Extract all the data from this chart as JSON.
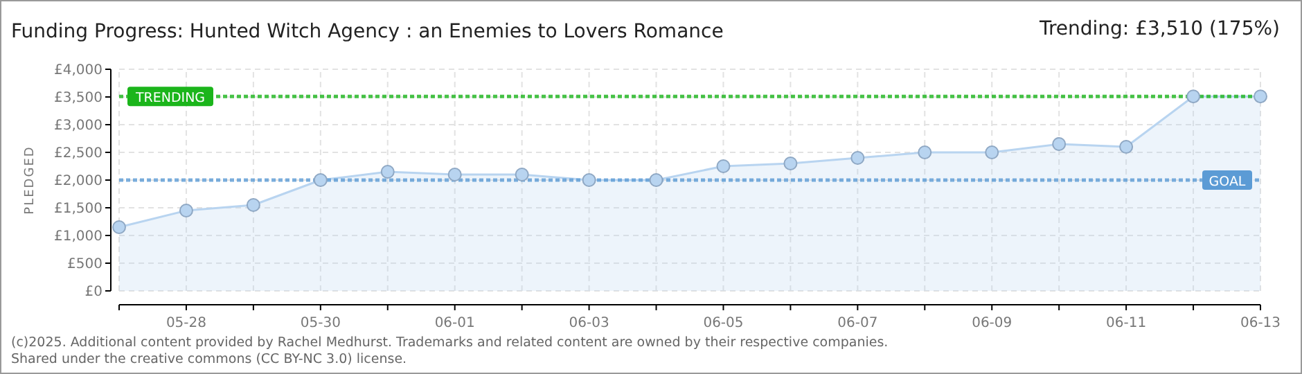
{
  "chart_data": {
    "type": "area",
    "title": "Funding Progress: Hunted Witch Agency : an Enemies to Lovers Romance",
    "subtitle": "Trending:  £3,510 (175%)",
    "ylabel": "PLEDGED",
    "x": [
      "--05-27",
      "--05-28",
      "--05-29",
      "--05-30",
      "--05-31",
      "--06-01",
      "--06-02",
      "--06-03",
      "--06-04",
      "--06-05",
      "--06-06",
      "--06-07",
      "--06-08",
      "--06-09",
      "--06-10",
      "--06-11",
      "--06-12",
      "--06-13"
    ],
    "series": [
      {
        "color": "#b8d4f0",
        "values": [
          1150,
          1450,
          1550,
          2000,
          2150,
          2100,
          2100,
          2000,
          2000,
          2250,
          2300,
          2400,
          2500,
          2500,
          2650,
          2600,
          3510,
          3510
        ]
      }
    ],
    "xlim": [
      "--05-27",
      "--06-13"
    ],
    "xticks": [
      {
        "value": "--05-27",
        "label": null
      },
      {
        "value": "--05-28",
        "label": "05-28"
      },
      {
        "value": "--05-29",
        "label": null
      },
      {
        "value": "--05-30",
        "label": "05-30"
      },
      {
        "value": "--05-31",
        "label": null
      },
      {
        "value": "--06-01",
        "label": "06-01"
      },
      {
        "value": "--06-02",
        "label": null
      },
      {
        "value": "--06-03",
        "label": "06-03"
      },
      {
        "value": "--06-04",
        "label": null
      },
      {
        "value": "--06-05",
        "label": "06-05"
      },
      {
        "value": "--06-06",
        "label": null
      },
      {
        "value": "--06-07",
        "label": "06-07"
      },
      {
        "value": "--06-08",
        "label": null
      },
      {
        "value": "--06-09",
        "label": "06-09"
      },
      {
        "value": "--06-10",
        "label": null
      },
      {
        "value": "--06-11",
        "label": "06-11"
      },
      {
        "value": "--06-12",
        "label": null
      },
      {
        "value": "--06-13",
        "label": "06-13"
      }
    ],
    "ylim": [
      0,
      4000
    ],
    "yticks": [
      {
        "value": 0,
        "label": "£0"
      },
      {
        "value": 500,
        "label": "£500"
      },
      {
        "value": 1000,
        "label": "£1,000"
      },
      {
        "value": 1500,
        "label": "£1,500"
      },
      {
        "value": 2000,
        "label": "£2,000"
      },
      {
        "value": 2500,
        "label": "£2,500"
      },
      {
        "value": 3000,
        "label": "£3,000"
      },
      {
        "value": 3500,
        "label": "£3,500"
      },
      {
        "value": 4000,
        "label": "£4,000"
      }
    ],
    "ref_lines": [
      {
        "axis": "y",
        "value": 3510,
        "label": "TRENDING",
        "color": "#1bb51b",
        "line_style": "dotted"
      },
      {
        "axis": "y",
        "value": 2000,
        "label": "GOAL",
        "color": "#5b9bd5",
        "line_style": "dotted"
      }
    ],
    "grid": true,
    "marker": "circle",
    "annotations": [
      "(c)2025. Additional content provided by Rachel Medhurst. Trademarks and related content are owned by their respective companies.",
      "Shared under the creative commons (CC BY-NC 3.0) license."
    ]
  }
}
